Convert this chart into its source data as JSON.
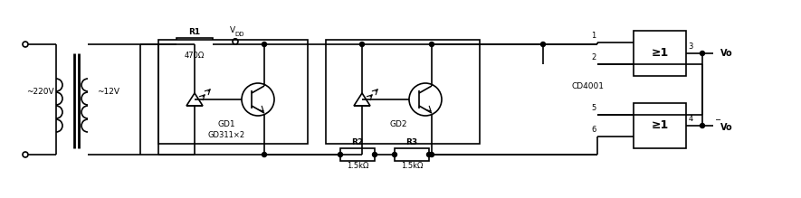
{
  "bg_color": "#ffffff",
  "line_color": "#000000",
  "lw": 1.2,
  "fig_w": 8.85,
  "fig_h": 2.19,
  "dpi": 100,
  "labels": {
    "ac": "~220V",
    "dc": "~12V",
    "r1": "R1",
    "r1v": "470Ω",
    "vdd": "V",
    "vdd2": "DD",
    "gd1": "GD1",
    "gd1t": "GD311×2",
    "gd2": "GD2",
    "r2": "R2",
    "r2v": "1.5kΩ",
    "r3": "R3",
    "r3v": "1.5kΩ",
    "cd": "CD4001",
    "p1": "1",
    "p2": "2",
    "p3": "3",
    "p4": "4",
    "p5": "5",
    "p6": "6",
    "vo": "Vo",
    "vob": "Vo",
    "g1": "≥1",
    "g2": "≥1"
  }
}
